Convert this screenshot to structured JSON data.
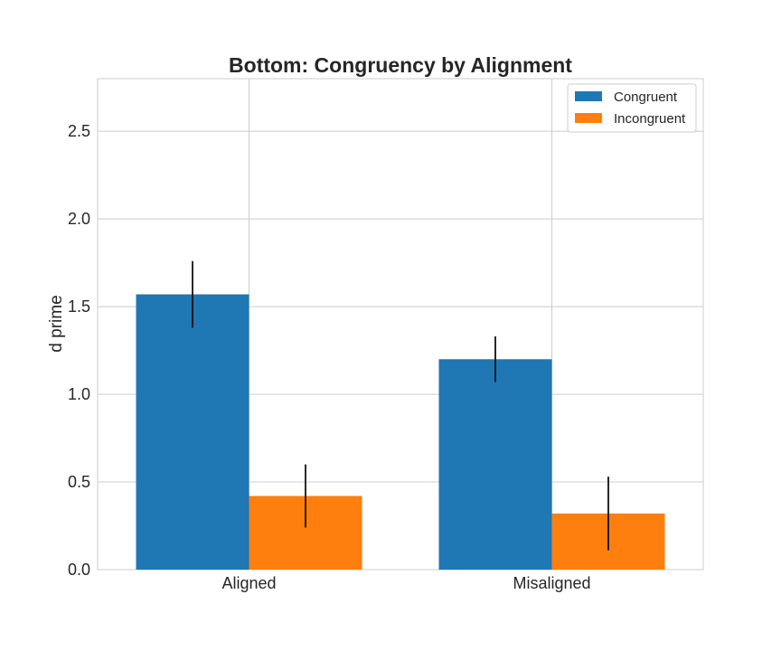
{
  "chart_data": {
    "type": "bar",
    "title": "Bottom: Congruency by Alignment",
    "xlabel": "",
    "ylabel": "d prime",
    "ylim": [
      0,
      2.8
    ],
    "yticks": [
      "0.0",
      "0.5",
      "1.0",
      "1.5",
      "2.0",
      "2.5"
    ],
    "categories": [
      "Aligned",
      "Misaligned"
    ],
    "series": [
      {
        "name": "Congruent",
        "color": "#1f77b4",
        "values": [
          1.57,
          1.2
        ],
        "errors": [
          0.19,
          0.13
        ]
      },
      {
        "name": "Incongruent",
        "color": "#ff7f0e",
        "values": [
          0.42,
          0.32
        ],
        "errors": [
          0.18,
          0.21
        ]
      }
    ],
    "grid": true,
    "legend_position": "top-right"
  }
}
